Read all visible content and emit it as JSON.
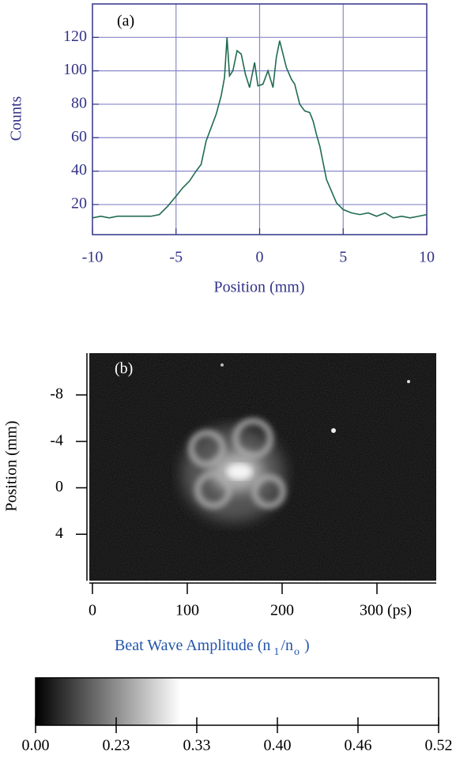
{
  "chart_data": [
    {
      "type": "line",
      "annotation": "(a)",
      "y_label": "Counts",
      "x_label": "Position (mm)",
      "color": "#1f6b4e",
      "grid": true,
      "xlim": [
        -10,
        10
      ],
      "ylim": [
        2,
        140
      ],
      "xticks": [
        -10,
        -5,
        0,
        5,
        10
      ],
      "yticks": [
        20,
        40,
        60,
        80,
        100,
        120
      ],
      "x": [
        -10,
        -9.5,
        -9,
        -8.5,
        -8,
        -7.5,
        -7,
        -6.5,
        -6,
        -5.5,
        -5,
        -4.6,
        -4.2,
        -3.8,
        -3.5,
        -3.2,
        -2.9,
        -2.6,
        -2.3,
        -2.1,
        -1.95,
        -1.8,
        -1.6,
        -1.35,
        -1.1,
        -0.85,
        -0.6,
        -0.3,
        -0.1,
        0.2,
        0.5,
        0.8,
        1.0,
        1.2,
        1.4,
        1.6,
        1.9,
        2.1,
        2.4,
        2.7,
        3.0,
        3.2,
        3.4,
        3.6,
        3.8,
        4.0,
        4.3,
        4.6,
        5.0,
        5.5,
        6,
        6.5,
        7,
        7.5,
        8,
        8.5,
        9,
        9.5,
        10
      ],
      "values": [
        12,
        13,
        12,
        13,
        13,
        13,
        13,
        13,
        14,
        19,
        25,
        30,
        34,
        40,
        44,
        58,
        66,
        74,
        85,
        96,
        120,
        97,
        100,
        112,
        110,
        98,
        90,
        105,
        91,
        92,
        100,
        90,
        108,
        118,
        110,
        102,
        95,
        92,
        80,
        76,
        75,
        70,
        62,
        55,
        45,
        35,
        28,
        21,
        17,
        15,
        14,
        15,
        13,
        15,
        12,
        13,
        12,
        13,
        14
      ]
    },
    {
      "type": "image",
      "annotation": "(b)",
      "y_label": "Position (mm)",
      "x_label_parts": [
        "Beat Wave Amplitude (n",
        "1",
        "/n",
        "o",
        ")"
      ],
      "xlim": [
        -3.3,
        362.5
      ],
      "ylim": [
        -11.6,
        8
      ],
      "xticks": [
        0,
        100,
        200,
        {
          "value": 300,
          "label": "300 (ps)"
        }
      ],
      "yticks": [
        -8,
        -4,
        0,
        4
      ]
    },
    {
      "type": "colorbar",
      "ticks": [
        {
          "value": 0,
          "label": "0.00"
        },
        {
          "value": 0.23,
          "label": "0.23"
        },
        {
          "value": 0.33,
          "label": "0.33"
        },
        {
          "value": 0.4,
          "label": "0.40"
        },
        {
          "value": 0.46,
          "label": "0.46"
        },
        {
          "value": 0.52,
          "label": "0.52"
        }
      ]
    }
  ]
}
